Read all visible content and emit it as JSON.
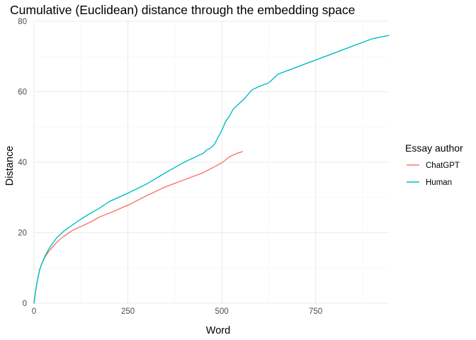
{
  "chart_data": {
    "type": "line",
    "title": "Cumulative (Euclidean) distance through the embedding space",
    "xlabel": "Word",
    "ylabel": "Distance",
    "xlim": [
      0,
      945
    ],
    "ylim": [
      0,
      80
    ],
    "x_ticks": [
      0,
      250,
      500,
      750
    ],
    "y_ticks": [
      0,
      20,
      40,
      60,
      80
    ],
    "grid": true,
    "legend": {
      "title": "Essay author",
      "position": "right"
    },
    "series": [
      {
        "name": "ChatGPT",
        "color": "#F8766D",
        "x": [
          0,
          5,
          10,
          15,
          20,
          30,
          40,
          50,
          60,
          70,
          80,
          100,
          120,
          150,
          175,
          200,
          250,
          300,
          350,
          400,
          450,
          500,
          520,
          540,
          555
        ],
        "y": [
          0,
          4,
          7,
          9.5,
          11,
          13.2,
          14.8,
          16,
          17.2,
          18.2,
          19,
          20.5,
          21.5,
          23,
          24.5,
          25.5,
          27.8,
          30.5,
          33,
          35,
          37,
          39.8,
          41.5,
          42.5,
          43
        ]
      },
      {
        "name": "Human",
        "color": "#00BFC4",
        "x": [
          0,
          5,
          10,
          15,
          20,
          30,
          40,
          50,
          60,
          70,
          80,
          100,
          120,
          150,
          175,
          200,
          250,
          300,
          350,
          400,
          430,
          450,
          460,
          470,
          480,
          490,
          500,
          510,
          520,
          530,
          540,
          560,
          580,
          600,
          625,
          650,
          675,
          700,
          750,
          800,
          850,
          900,
          945
        ],
        "y": [
          0,
          4,
          7,
          9.5,
          11,
          13.5,
          15.5,
          17,
          18.5,
          19.5,
          20.5,
          22,
          23.5,
          25.5,
          27,
          28.8,
          31.2,
          33.8,
          37,
          40,
          41.5,
          42.5,
          43.5,
          44,
          45,
          47,
          49,
          51.5,
          53,
          55,
          56,
          58,
          60.5,
          61.5,
          62.5,
          65,
          66,
          67,
          69,
          71,
          73,
          75,
          76
        ]
      }
    ]
  }
}
